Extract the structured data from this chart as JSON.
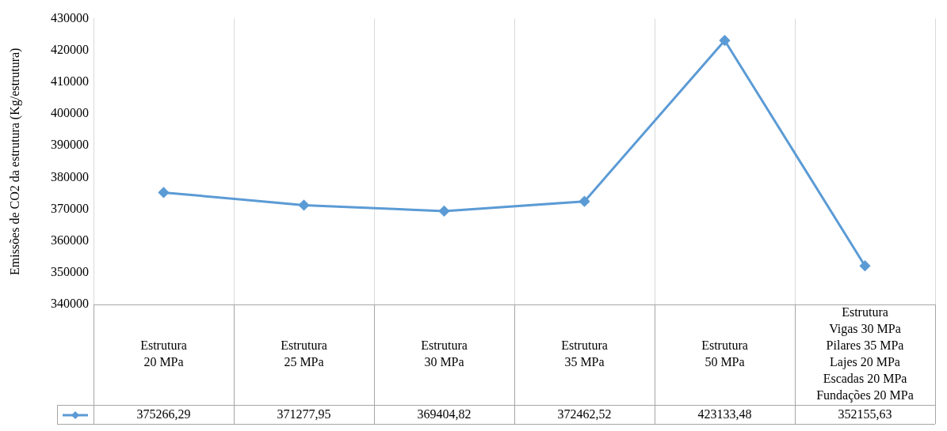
{
  "chart_data": {
    "type": "line",
    "ylabel": "Emissões de CO2 da estrutura (Kg/estrutura)",
    "categories": [
      "Estrutura\n20 MPa",
      "Estrutura\n25 MPa",
      "Estrutura\n30 MPa",
      "Estrutura\n35 MPa",
      "Estrutura\n50 MPa",
      "Estrutura\nVigas 30 MPa\nPilares 35 MPa\nLajes 20 MPa\nEscadas 20 MPa\nFundações 20 MPa"
    ],
    "series": [
      {
        "color": "#5b9bd5",
        "values": [
          375266.29,
          371277.95,
          369404.82,
          372462.52,
          423133.48,
          352155.63
        ],
        "value_labels": [
          "375266,29",
          "371277,95",
          "369404,82",
          "372462,52",
          "423133,48",
          "352155,63"
        ]
      }
    ],
    "ylim": [
      340000,
      430000
    ],
    "yticks": [
      340000,
      350000,
      360000,
      370000,
      380000,
      390000,
      400000,
      410000,
      420000,
      430000
    ],
    "grid": "x",
    "marker": "diamond",
    "line_style": "solid"
  }
}
